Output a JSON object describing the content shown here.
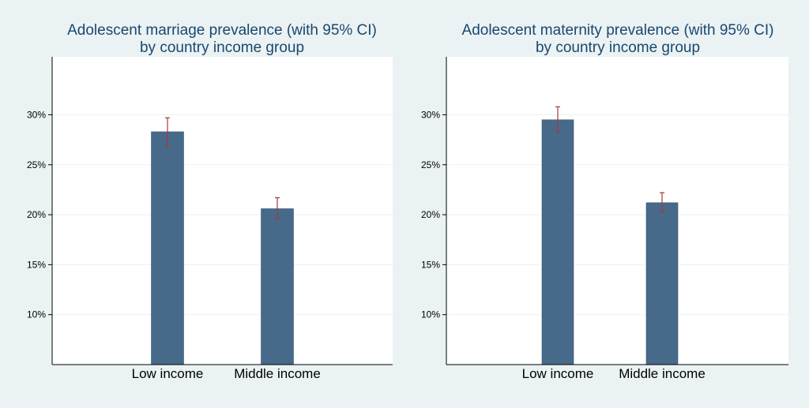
{
  "chart_data": [
    {
      "type": "bar",
      "title": [
        "Adolescent marriage prevalence (with 95% CI)",
        "by country income group"
      ],
      "categories": [
        "Low income",
        "Middle income"
      ],
      "values": [
        28.3,
        20.6
      ],
      "ci_low": [
        26.9,
        19.6
      ],
      "ci_high": [
        29.7,
        21.7
      ],
      "y_ticks": [
        10,
        15,
        20,
        25,
        30
      ],
      "y_tick_labels": [
        "10%",
        "15%",
        "20%",
        "25%",
        "30%"
      ],
      "ylim": [
        5,
        35.8
      ],
      "grid": true,
      "colors": {
        "bar": "#476a8a",
        "ci": "#a33a3a",
        "title": "#1a476f",
        "background": "#eaf2f3",
        "plot": "#ffffff"
      }
    },
    {
      "type": "bar",
      "title": [
        "Adolescent maternity prevalence (with 95% CI)",
        "by country income group"
      ],
      "categories": [
        "Low income",
        "Middle income"
      ],
      "values": [
        29.5,
        21.2
      ],
      "ci_low": [
        28.3,
        20.3
      ],
      "ci_high": [
        30.8,
        22.2
      ],
      "y_ticks": [
        10,
        15,
        20,
        25,
        30
      ],
      "y_tick_labels": [
        "10%",
        "15%",
        "20%",
        "25%",
        "30%"
      ],
      "ylim": [
        5,
        35.8
      ],
      "grid": true,
      "colors": {
        "bar": "#476a8a",
        "ci": "#a33a3a",
        "title": "#1a476f",
        "background": "#eaf2f3",
        "plot": "#ffffff"
      }
    }
  ]
}
